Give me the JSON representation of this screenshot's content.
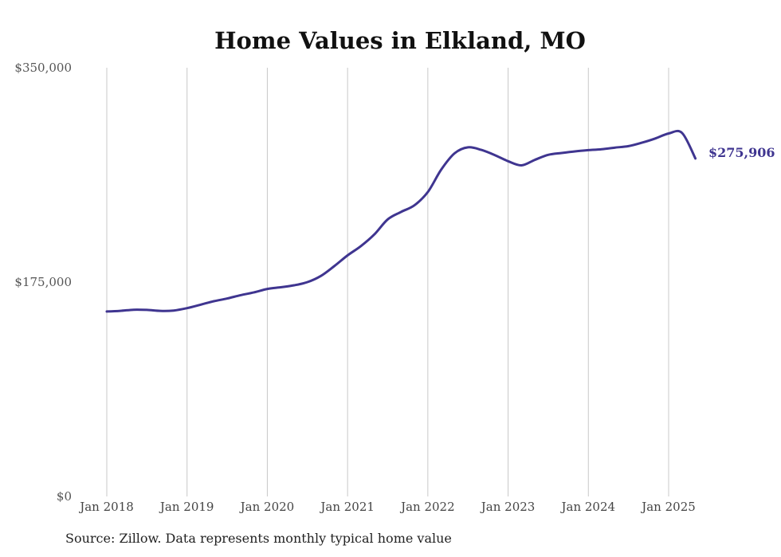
{
  "chart_data": {
    "type": "line",
    "title": "Home Values in Elkland, MO",
    "xlabel": "",
    "ylabel": "",
    "ylim": [
      0,
      350000
    ],
    "y_ticks": [
      0,
      175000,
      350000
    ],
    "y_tick_labels": [
      "$0",
      "$175,000",
      "$350,000"
    ],
    "x_ticks": [
      "2018-01",
      "2019-01",
      "2020-01",
      "2021-01",
      "2022-01",
      "2023-01",
      "2024-01",
      "2025-01"
    ],
    "x_tick_labels": [
      "Jan 2018",
      "Jan 2019",
      "Jan 2020",
      "Jan 2021",
      "Jan 2022",
      "Jan 2023",
      "Jan 2024",
      "Jan 2025"
    ],
    "grid": "vertical lines at x ticks",
    "legend": "none",
    "end_label": "$275,906",
    "series_color": "#3f3590",
    "series": [
      {
        "x": [
          "2018-01",
          "2018-03",
          "2018-05",
          "2018-07",
          "2018-09",
          "2018-11",
          "2019-01",
          "2019-03",
          "2019-05",
          "2019-07",
          "2019-09",
          "2019-11",
          "2020-01",
          "2020-03",
          "2020-05",
          "2020-07",
          "2020-09",
          "2020-11",
          "2021-01",
          "2021-03",
          "2021-05",
          "2021-07",
          "2021-09",
          "2021-11",
          "2022-01",
          "2022-03",
          "2022-05",
          "2022-07",
          "2022-09",
          "2022-11",
          "2023-01",
          "2023-03",
          "2023-05",
          "2023-07",
          "2023-09",
          "2023-11",
          "2024-01",
          "2024-03",
          "2024-05",
          "2024-07",
          "2024-09",
          "2024-11",
          "2025-01",
          "2025-03",
          "2025-05"
        ],
        "y": [
          151000,
          151500,
          152400,
          152300,
          151500,
          151800,
          153700,
          156500,
          159400,
          161600,
          164300,
          166600,
          169400,
          170800,
          172400,
          175000,
          180000,
          188000,
          196800,
          204400,
          213900,
          226200,
          232300,
          237700,
          248600,
          266800,
          280100,
          285000,
          282900,
          278700,
          273700,
          270300,
          274800,
          278900,
          280400,
          281700,
          282700,
          283500,
          284800,
          286000,
          288800,
          292200,
          296300,
          296800,
          275906
        ]
      }
    ]
  },
  "footer": {
    "source": "Source: Zillow. Data represents monthly typical home value"
  }
}
